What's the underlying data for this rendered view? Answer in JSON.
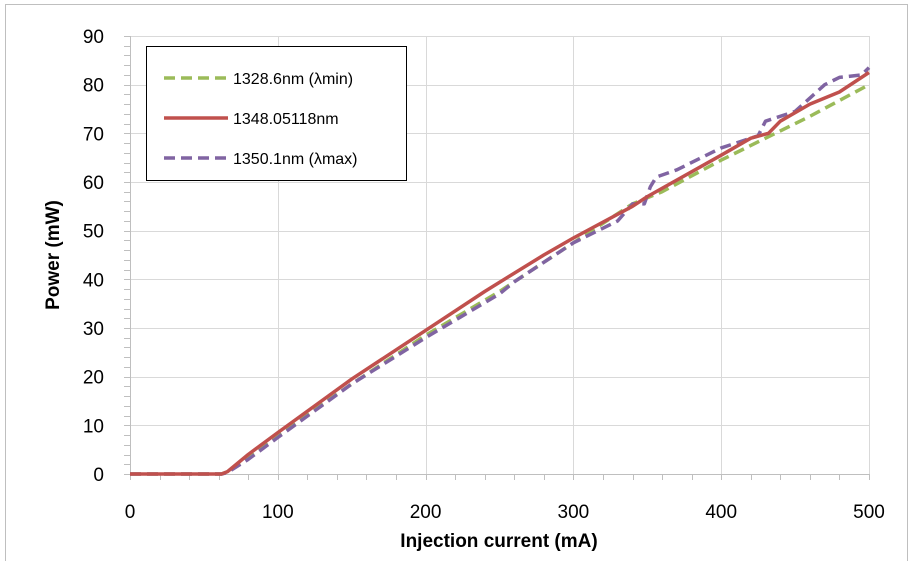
{
  "chart_data": {
    "type": "line",
    "title": "",
    "xlabel": "Injection current (mA)",
    "ylabel": "Power (mW)",
    "xlim": [
      0,
      500
    ],
    "ylim": [
      0,
      90
    ],
    "xticks": [
      0,
      100,
      200,
      300,
      400,
      500
    ],
    "yticks": [
      0,
      10,
      20,
      30,
      40,
      50,
      60,
      70,
      80,
      90
    ],
    "grid": true,
    "legend_position": "top-left",
    "series": [
      {
        "name": "1328.6nm (λmin)",
        "color": "#9bbb59",
        "style": "dashed",
        "points": [
          [
            0,
            0
          ],
          [
            62,
            0
          ],
          [
            66,
            0.5
          ],
          [
            80,
            3.5
          ],
          [
            100,
            8
          ],
          [
            150,
            18.5
          ],
          [
            200,
            28.5
          ],
          [
            250,
            37.5
          ],
          [
            300,
            47.5
          ],
          [
            340,
            55.5
          ],
          [
            360,
            58
          ],
          [
            400,
            64.5
          ],
          [
            430,
            69
          ],
          [
            460,
            73.5
          ],
          [
            500,
            80
          ]
        ]
      },
      {
        "name": "1348.05118nm",
        "color": "#c0504d",
        "style": "solid",
        "points": [
          [
            0,
            0
          ],
          [
            62,
            0
          ],
          [
            66,
            0.5
          ],
          [
            80,
            4
          ],
          [
            100,
            8.5
          ],
          [
            150,
            19.5
          ],
          [
            200,
            29.5
          ],
          [
            240,
            37.5
          ],
          [
            280,
            45
          ],
          [
            300,
            48.5
          ],
          [
            340,
            55
          ],
          [
            350,
            57
          ],
          [
            400,
            65.5
          ],
          [
            420,
            69
          ],
          [
            432,
            70
          ],
          [
            440,
            72.5
          ],
          [
            460,
            76
          ],
          [
            480,
            78.5
          ],
          [
            500,
            82.5
          ]
        ]
      },
      {
        "name": "1350.1nm (λmax)",
        "color": "#8064a2",
        "style": "dashed",
        "points": [
          [
            0,
            0
          ],
          [
            62,
            0
          ],
          [
            66,
            0.3
          ],
          [
            80,
            3
          ],
          [
            100,
            7.5
          ],
          [
            150,
            18.5
          ],
          [
            200,
            28
          ],
          [
            250,
            37
          ],
          [
            260,
            39.5
          ],
          [
            300,
            47.5
          ],
          [
            330,
            52
          ],
          [
            340,
            55.5
          ],
          [
            348,
            55.5
          ],
          [
            352,
            59
          ],
          [
            356,
            61
          ],
          [
            370,
            62.5
          ],
          [
            400,
            67
          ],
          [
            425,
            69.5
          ],
          [
            430,
            72.5
          ],
          [
            450,
            74.5
          ],
          [
            470,
            80
          ],
          [
            480,
            81.5
          ],
          [
            495,
            82
          ],
          [
            500,
            83.5
          ]
        ]
      }
    ]
  }
}
